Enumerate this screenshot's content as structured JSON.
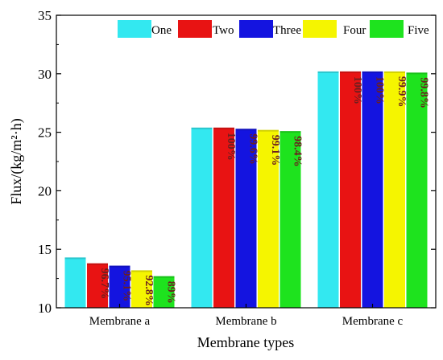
{
  "chart_data": {
    "type": "bar",
    "xlabel": "Membrane types",
    "ylabel": "Flux/(kg/m²·h)",
    "ylim": [
      10,
      35
    ],
    "yticks": [
      10,
      15,
      20,
      25,
      30,
      35
    ],
    "categories": [
      "Membrane a",
      "Membrane b",
      "Membrane c"
    ],
    "legend_position": "top",
    "grid": false,
    "series": [
      {
        "name": "One",
        "color": "#33e8f0",
        "values": [
          14.3,
          25.4,
          30.2
        ],
        "labels": [
          "",
          "",
          ""
        ]
      },
      {
        "name": "Two",
        "color": "#e81313",
        "values": [
          13.8,
          25.4,
          30.2
        ],
        "labels": [
          "96.7%",
          "100%",
          "100%"
        ]
      },
      {
        "name": "Three",
        "color": "#1414e0",
        "values": [
          13.6,
          25.3,
          30.2
        ],
        "labels": [
          "95.1%",
          "99.6%",
          "100%"
        ]
      },
      {
        "name": "Four",
        "color": "#f5f500",
        "values": [
          13.2,
          25.2,
          30.2
        ],
        "labels": [
          "92.8%",
          "99.1%",
          "99.9%"
        ]
      },
      {
        "name": "Five",
        "color": "#1ee31e",
        "values": [
          12.7,
          25.1,
          30.1
        ],
        "labels": [
          "89%",
          "98.4%",
          "99.8%"
        ]
      }
    ]
  }
}
